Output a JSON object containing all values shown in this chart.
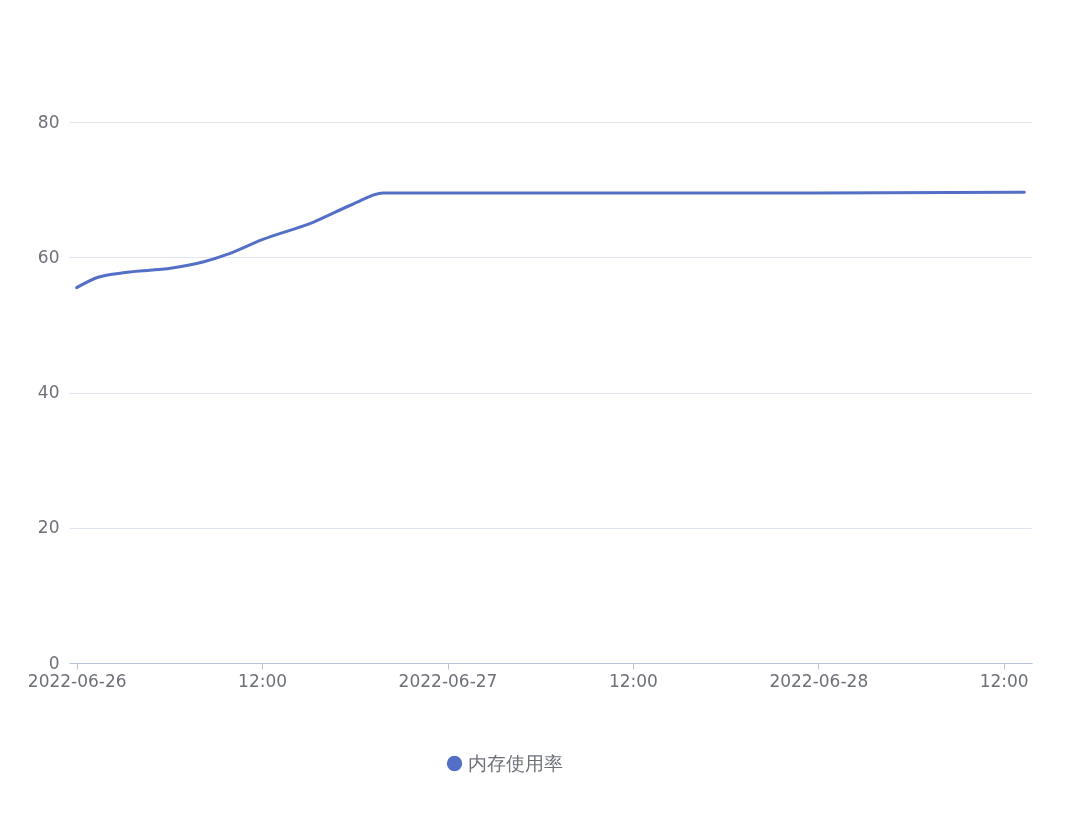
{
  "chart_data": {
    "type": "line",
    "x": [
      "2022-06-26T00:00",
      "2022-06-26T01:20",
      "2022-06-26T03:00",
      "2022-06-26T06:10",
      "2022-06-26T08:10",
      "2022-06-26T09:50",
      "2022-06-26T12:00",
      "2022-06-26T15:20",
      "2022-06-26T17:50",
      "2022-06-26T19:50",
      "2022-06-27T12:00",
      "2022-06-28T00:00",
      "2022-06-28T13:20"
    ],
    "series": [
      {
        "name": "内存使用率",
        "color": "#5470c6",
        "values": [
          55.5,
          57,
          57.7,
          58.4,
          59.3,
          60.5,
          62.6,
          65.2,
          67.8,
          69.5,
          69.5,
          69.5,
          69.6
        ]
      }
    ],
    "xlim": [
      "2022-06-25T23:30",
      "2022-06-28T13:50"
    ],
    "xticks": [
      {
        "value": "2022-06-26T00:00",
        "label": "2022-06-26"
      },
      {
        "value": "2022-06-26T12:00",
        "label": "12:00"
      },
      {
        "value": "2022-06-27T00:00",
        "label": "2022-06-27"
      },
      {
        "value": "2022-06-27T12:00",
        "label": "12:00"
      },
      {
        "value": "2022-06-28T00:00",
        "label": "2022-06-28"
      },
      {
        "value": "2022-06-28T12:00",
        "label": "12:00"
      }
    ],
    "ylim": [
      0,
      80
    ],
    "yticks": [
      0,
      20,
      40,
      60,
      80
    ],
    "grid": "y",
    "legend": "bottom"
  }
}
